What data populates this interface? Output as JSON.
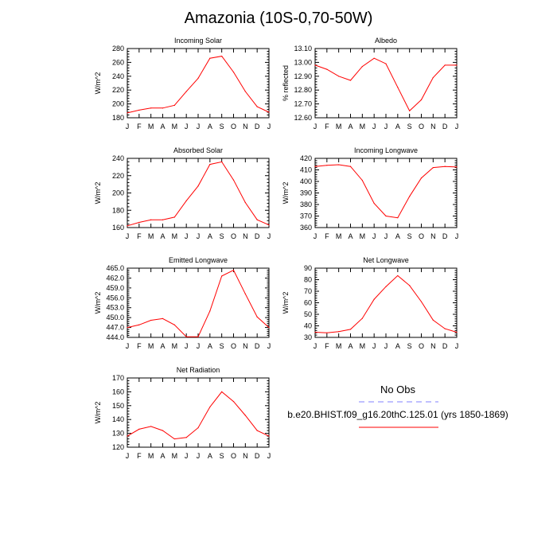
{
  "title": "Amazonia (10S-0,70-50W)",
  "legend": {
    "obs_label": "No Obs",
    "model_label": "b.e20.BHIST.f09_g16.20thC.125.01 (yrs 1850-1869)",
    "obs_color": "#8080ff",
    "model_color": "#ff0000"
  },
  "months": [
    "J",
    "F",
    "M",
    "A",
    "M",
    "J",
    "J",
    "A",
    "S",
    "O",
    "N",
    "D",
    "J"
  ],
  "chart_data": [
    {
      "type": "line",
      "title": "Incoming Solar",
      "ylabel": "W/m^2",
      "ylim": [
        180,
        280
      ],
      "yticks": [
        "180",
        "200",
        "220",
        "240",
        "260",
        "280"
      ],
      "series": [
        {
          "name": "b.e20.BHIST.f09_g16.20thC.125.01",
          "color": "#ff0000",
          "values": [
            187,
            191,
            194,
            194,
            198,
            218,
            237,
            266,
            269,
            246,
            218,
            196,
            188
          ]
        }
      ]
    },
    {
      "type": "line",
      "title": "Albedo",
      "ylabel": "% reflected",
      "ylim": [
        12.6,
        13.1
      ],
      "yticks": [
        "12.60",
        "12.70",
        "12.80",
        "12.90",
        "13.00",
        "13.10"
      ],
      "series": [
        {
          "name": "b.e20.BHIST.f09_g16.20thC.125.01",
          "color": "#ff0000",
          "values": [
            12.98,
            12.95,
            12.9,
            12.87,
            12.97,
            13.03,
            12.99,
            12.82,
            12.65,
            12.73,
            12.89,
            12.98,
            12.98
          ]
        }
      ]
    },
    {
      "type": "line",
      "title": "Absorbed Solar",
      "ylabel": "W/m^2",
      "ylim": [
        160,
        240
      ],
      "yticks": [
        "160",
        "180",
        "200",
        "220",
        "240"
      ],
      "series": [
        {
          "name": "b.e20.BHIST.f09_g16.20thC.125.01",
          "color": "#ff0000",
          "values": [
            162,
            166,
            169,
            169,
            172,
            191,
            208,
            233,
            236,
            215,
            189,
            169,
            163
          ]
        }
      ]
    },
    {
      "type": "line",
      "title": "Incoming Longwave",
      "ylabel": "W/m^2",
      "ylim": [
        360,
        420
      ],
      "yticks": [
        "360",
        "370",
        "380",
        "390",
        "400",
        "410",
        "420"
      ],
      "series": [
        {
          "name": "b.e20.BHIST.f09_g16.20thC.125.01",
          "color": "#ff0000",
          "values": [
            413,
            414,
            414.5,
            413,
            401,
            381,
            370,
            368.5,
            387,
            403,
            412,
            413,
            412.5
          ]
        }
      ]
    },
    {
      "type": "line",
      "title": "Emitted Longwave",
      "ylabel": "W/m^2",
      "ylim": [
        444,
        465
      ],
      "yticks": [
        "444.0",
        "447.0",
        "450.0",
        "453.0",
        "456.0",
        "459.0",
        "462.0",
        "465.0"
      ],
      "series": [
        {
          "name": "b.e20.BHIST.f09_g16.20thC.125.01",
          "color": "#ff0000",
          "values": [
            447,
            447.8,
            449.2,
            449.7,
            447.8,
            444.2,
            444.2,
            452,
            462.6,
            464.4,
            457.2,
            450.2,
            447
          ]
        }
      ]
    },
    {
      "type": "line",
      "title": "Net Longwave",
      "ylabel": "W/m^2",
      "ylim": [
        30,
        90
      ],
      "yticks": [
        "30",
        "40",
        "50",
        "60",
        "70",
        "80",
        "90"
      ],
      "series": [
        {
          "name": "b.e20.BHIST.f09_g16.20thC.125.01",
          "color": "#ff0000",
          "values": [
            34.5,
            34,
            35,
            37,
            46.5,
            63,
            74,
            83.5,
            75,
            61,
            45,
            37.5,
            34.5
          ]
        }
      ]
    },
    {
      "type": "line",
      "title": "Net Radiation",
      "ylabel": "W/m^2",
      "ylim": [
        120,
        170
      ],
      "yticks": [
        "120",
        "130",
        "140",
        "150",
        "160",
        "170"
      ],
      "series": [
        {
          "name": "b.e20.BHIST.f09_g16.20thC.125.01",
          "color": "#ff0000",
          "values": [
            128,
            133,
            135,
            132,
            126,
            127,
            134,
            149,
            160,
            153,
            143,
            132,
            128
          ]
        }
      ]
    }
  ]
}
